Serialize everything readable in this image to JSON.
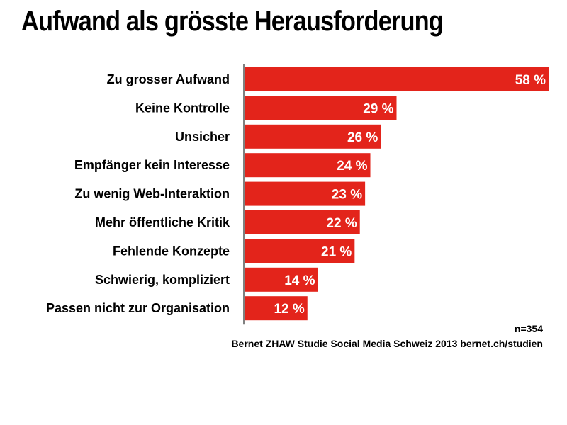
{
  "title": "Aufwand als grösste Herausforderung",
  "footer": {
    "sample": "n=354",
    "source": "Bernet ZHAW Studie Social Media Schweiz 2013 bernet.ch/studien"
  },
  "colors": {
    "bar": "#e3241b",
    "axis": "#000000"
  },
  "chart_data": {
    "type": "bar",
    "orientation": "horizontal",
    "title": "Aufwand als grösste Herausforderung",
    "categories": [
      "Zu grosser Aufwand",
      "Keine Kontrolle",
      "Unsicher",
      "Empfänger kein Interesse",
      "Zu wenig Web-Interaktion",
      "Mehr öffentliche Kritik",
      "Fehlende Konzepte",
      "Schwierig, kompliziert",
      "Passen nicht zur Organisation"
    ],
    "values": [
      58,
      29,
      26,
      24,
      23,
      22,
      21,
      14,
      12
    ],
    "value_labels": [
      "58 %",
      "29 %",
      "26 %",
      "24 %",
      "23 %",
      "22 %",
      "21 %",
      "14 %",
      "12 %"
    ],
    "unit": "%",
    "xlim": [
      0,
      58
    ],
    "grid": false,
    "legend": "none"
  }
}
